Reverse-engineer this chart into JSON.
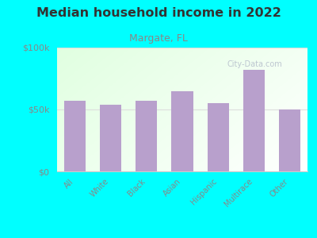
{
  "title": "Median household income in 2022",
  "subtitle": "Margate, FL",
  "categories": [
    "All",
    "White",
    "Black",
    "Asian",
    "Hispanic",
    "Multirace",
    "Other"
  ],
  "values": [
    57000,
    54000,
    57000,
    65000,
    55000,
    82000,
    50000
  ],
  "bar_color": "#b8a0cc",
  "background_color": "#00ffff",
  "title_color": "#333333",
  "subtitle_color": "#888888",
  "ytick_labels": [
    "$0",
    "$50k",
    "$100k"
  ],
  "ytick_values": [
    0,
    50000,
    100000
  ],
  "ylim": [
    0,
    100000
  ],
  "watermark": "City-Data.com",
  "grid_color": "#dddddd",
  "spine_color": "#cccccc",
  "xlabel_color": "#888888",
  "ylabel_color": "#888888"
}
